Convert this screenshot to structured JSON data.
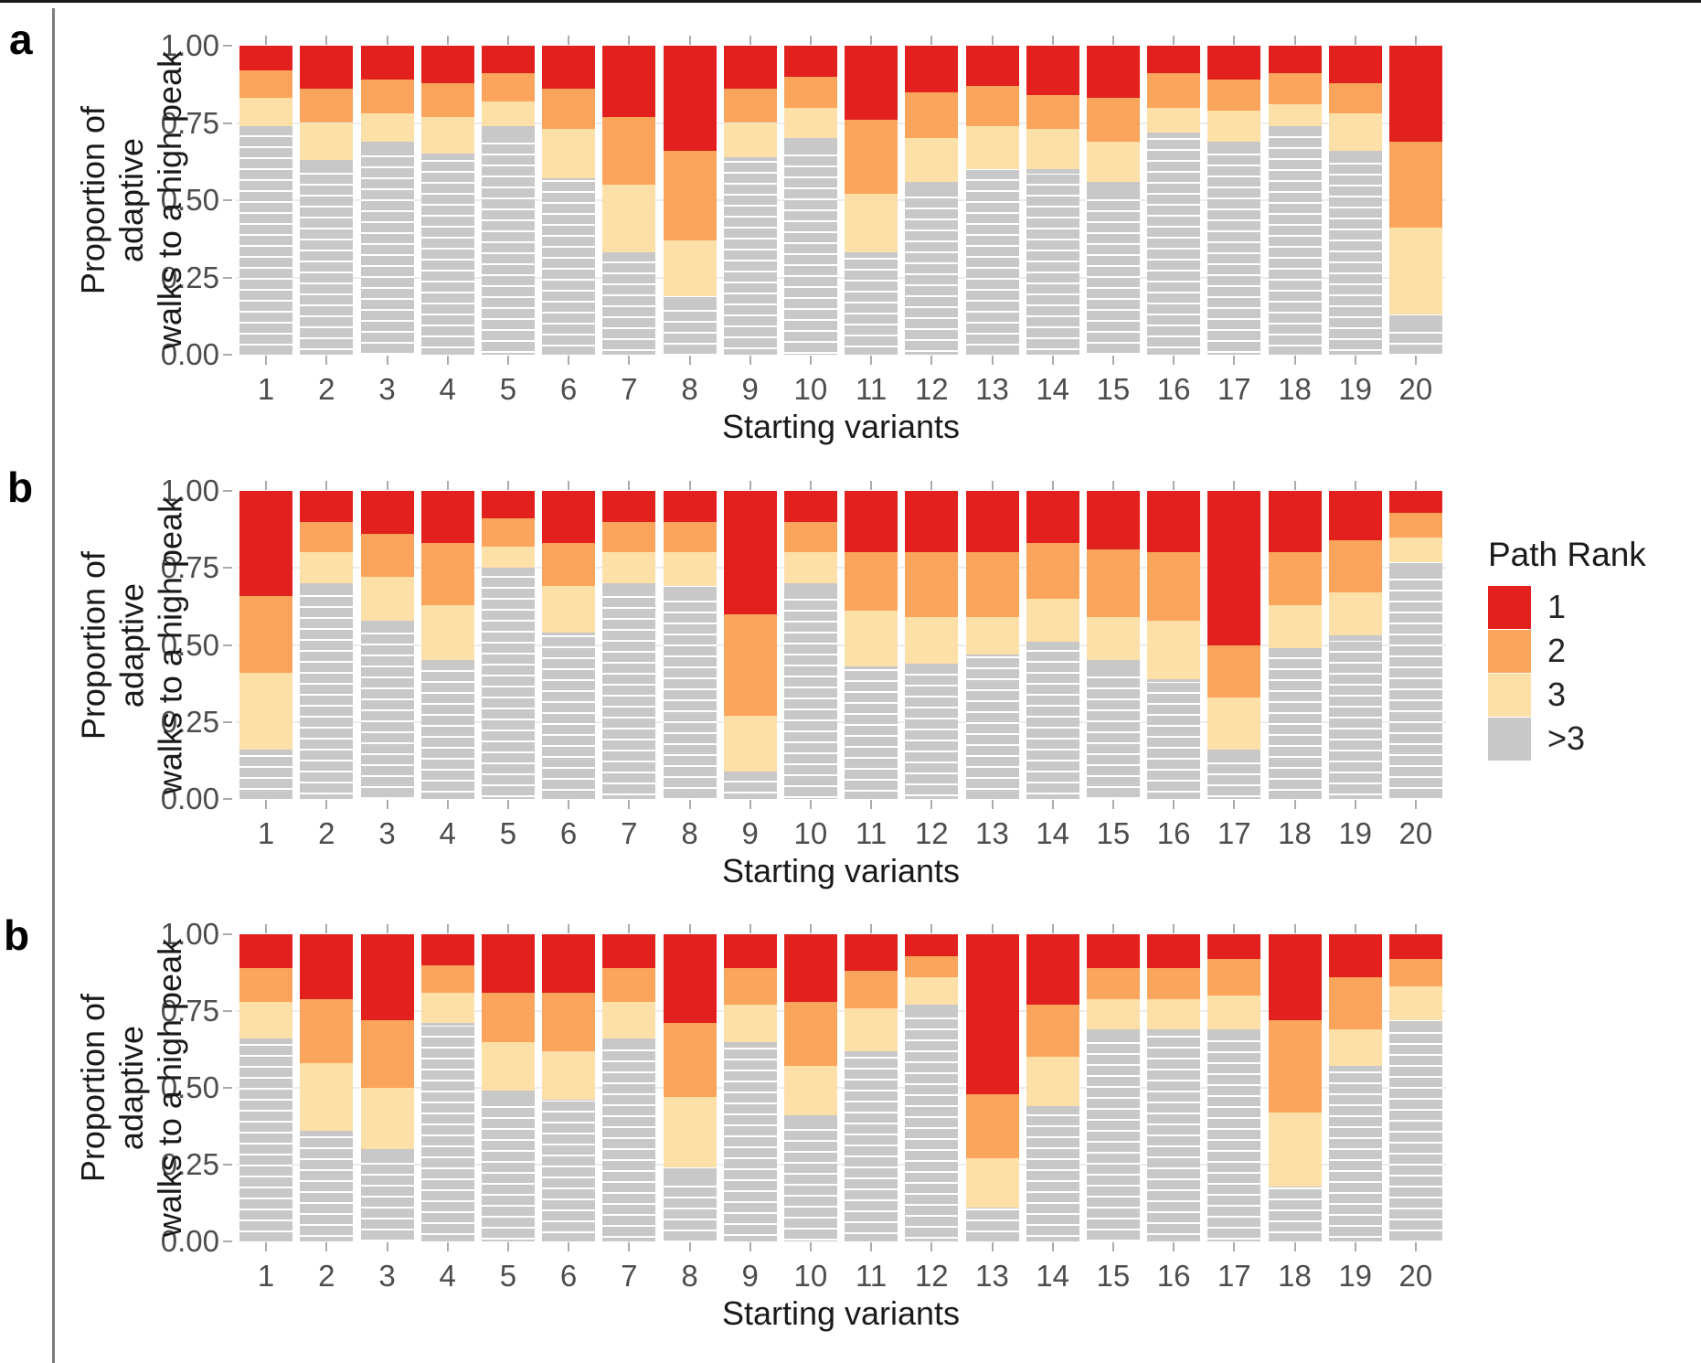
{
  "colors": {
    "rank1": "#E2201D",
    "rank2": "#FAA55B",
    "rank3": "#FDDFA8",
    "rank_gt3": "#C8C8C8",
    "grid": "#ECECEC",
    "tick": "#ABABAB",
    "tick_label": "#4D4D4D",
    "axis_title": "#1A1A1A"
  },
  "legend": {
    "title": "Path Rank",
    "items": [
      {
        "label": "1",
        "color_key": "rank1"
      },
      {
        "label": "2",
        "color_key": "rank2"
      },
      {
        "label": "3",
        "color_key": "rank3"
      },
      {
        "label": ">3",
        "color_key": "rank_gt3"
      }
    ]
  },
  "chart_data": [
    {
      "type": "bar",
      "stacked": true,
      "panel_label": "a",
      "xlabel": "Starting variants",
      "ylabel_lines": [
        "Proportion of adaptive",
        "walks to a high peak"
      ],
      "ylim": [
        0,
        1
      ],
      "grid": true,
      "yticks": [
        {
          "v": 0.0,
          "label": "0.00"
        },
        {
          "v": 0.25,
          "label": "0.25"
        },
        {
          "v": 0.5,
          "label": "0.50"
        },
        {
          "v": 0.75,
          "label": "0.75"
        },
        {
          "v": 1.0,
          "label": "1.00"
        }
      ],
      "categories": [
        "1",
        "2",
        "3",
        "4",
        "5",
        "6",
        "7",
        "8",
        "9",
        "10",
        "11",
        "12",
        "13",
        "14",
        "15",
        "16",
        "17",
        "18",
        "19",
        "20"
      ],
      "series": [
        {
          "name": ">3",
          "color_key": "rank_gt3",
          "values": [
            0.74,
            0.63,
            0.69,
            0.65,
            0.74,
            0.57,
            0.33,
            0.19,
            0.64,
            0.7,
            0.33,
            0.56,
            0.6,
            0.6,
            0.56,
            0.72,
            0.69,
            0.74,
            0.66,
            0.13
          ]
        },
        {
          "name": "3",
          "color_key": "rank3",
          "values": [
            0.09,
            0.12,
            0.09,
            0.12,
            0.08,
            0.16,
            0.22,
            0.18,
            0.11,
            0.1,
            0.19,
            0.14,
            0.14,
            0.13,
            0.13,
            0.08,
            0.1,
            0.07,
            0.12,
            0.28
          ]
        },
        {
          "name": "2",
          "color_key": "rank2",
          "values": [
            0.09,
            0.11,
            0.11,
            0.11,
            0.09,
            0.13,
            0.22,
            0.29,
            0.11,
            0.1,
            0.24,
            0.15,
            0.13,
            0.11,
            0.14,
            0.11,
            0.1,
            0.1,
            0.1,
            0.28
          ]
        },
        {
          "name": "1",
          "color_key": "rank1",
          "values": [
            0.08,
            0.14,
            0.11,
            0.12,
            0.09,
            0.14,
            0.23,
            0.34,
            0.14,
            0.1,
            0.24,
            0.15,
            0.13,
            0.16,
            0.17,
            0.09,
            0.11,
            0.09,
            0.12,
            0.31
          ]
        }
      ]
    },
    {
      "type": "bar",
      "stacked": true,
      "panel_label": "b",
      "xlabel": "Starting variants",
      "ylabel_lines": [
        "Proportion of adaptive",
        "walks to a high peak"
      ],
      "ylim": [
        0,
        1
      ],
      "grid": true,
      "legend_position": "right",
      "yticks": [
        {
          "v": 0.0,
          "label": "0.00"
        },
        {
          "v": 0.25,
          "label": "0.25"
        },
        {
          "v": 0.5,
          "label": "0.50"
        },
        {
          "v": 0.75,
          "label": "0.75"
        },
        {
          "v": 1.0,
          "label": "1.00"
        }
      ],
      "categories": [
        "1",
        "2",
        "3",
        "4",
        "5",
        "6",
        "7",
        "8",
        "9",
        "10",
        "11",
        "12",
        "13",
        "14",
        "15",
        "16",
        "17",
        "18",
        "19",
        "20"
      ],
      "series": [
        {
          "name": ">3",
          "color_key": "rank_gt3",
          "values": [
            0.16,
            0.7,
            0.58,
            0.45,
            0.75,
            0.54,
            0.7,
            0.69,
            0.09,
            0.7,
            0.43,
            0.44,
            0.47,
            0.51,
            0.45,
            0.39,
            0.16,
            0.49,
            0.53,
            0.77
          ]
        },
        {
          "name": "3",
          "color_key": "rank3",
          "values": [
            0.25,
            0.1,
            0.14,
            0.18,
            0.07,
            0.15,
            0.1,
            0.11,
            0.18,
            0.1,
            0.18,
            0.15,
            0.12,
            0.14,
            0.14,
            0.19,
            0.17,
            0.14,
            0.14,
            0.08
          ]
        },
        {
          "name": "2",
          "color_key": "rank2",
          "values": [
            0.25,
            0.1,
            0.14,
            0.2,
            0.09,
            0.14,
            0.1,
            0.1,
            0.33,
            0.1,
            0.19,
            0.21,
            0.21,
            0.18,
            0.22,
            0.22,
            0.17,
            0.17,
            0.17,
            0.08
          ]
        },
        {
          "name": "1",
          "color_key": "rank1",
          "values": [
            0.34,
            0.1,
            0.14,
            0.17,
            0.09,
            0.17,
            0.1,
            0.1,
            0.4,
            0.1,
            0.2,
            0.2,
            0.2,
            0.17,
            0.19,
            0.2,
            0.5,
            0.2,
            0.16,
            0.07
          ]
        }
      ]
    },
    {
      "type": "bar",
      "stacked": true,
      "panel_label": "b",
      "xlabel": "Starting variants",
      "ylabel_lines": [
        "Proportion of adaptive",
        "walks to a high peak"
      ],
      "ylim": [
        0,
        1
      ],
      "grid": true,
      "yticks": [
        {
          "v": 0.0,
          "label": "0.00"
        },
        {
          "v": 0.25,
          "label": "0.25"
        },
        {
          "v": 0.5,
          "label": "0.50"
        },
        {
          "v": 0.75,
          "label": "0.75"
        },
        {
          "v": 1.0,
          "label": "1.00"
        }
      ],
      "categories": [
        "1",
        "2",
        "3",
        "4",
        "5",
        "6",
        "7",
        "8",
        "9",
        "10",
        "11",
        "12",
        "13",
        "14",
        "15",
        "16",
        "17",
        "18",
        "19",
        "20"
      ],
      "series": [
        {
          "name": ">3",
          "color_key": "rank_gt3",
          "values": [
            0.66,
            0.36,
            0.3,
            0.71,
            0.49,
            0.46,
            0.66,
            0.24,
            0.65,
            0.41,
            0.62,
            0.77,
            0.11,
            0.44,
            0.69,
            0.69,
            0.69,
            0.18,
            0.57,
            0.72
          ]
        },
        {
          "name": "3",
          "color_key": "rank3",
          "values": [
            0.12,
            0.22,
            0.2,
            0.1,
            0.16,
            0.16,
            0.12,
            0.23,
            0.12,
            0.16,
            0.14,
            0.09,
            0.16,
            0.16,
            0.1,
            0.1,
            0.11,
            0.24,
            0.12,
            0.11
          ]
        },
        {
          "name": "2",
          "color_key": "rank2",
          "values": [
            0.11,
            0.21,
            0.22,
            0.09,
            0.16,
            0.19,
            0.11,
            0.24,
            0.12,
            0.21,
            0.12,
            0.07,
            0.21,
            0.17,
            0.1,
            0.1,
            0.12,
            0.3,
            0.17,
            0.09
          ]
        },
        {
          "name": "1",
          "color_key": "rank1",
          "values": [
            0.11,
            0.21,
            0.28,
            0.1,
            0.19,
            0.19,
            0.11,
            0.29,
            0.11,
            0.22,
            0.12,
            0.07,
            0.52,
            0.23,
            0.11,
            0.11,
            0.08,
            0.28,
            0.14,
            0.08
          ]
        }
      ]
    }
  ]
}
